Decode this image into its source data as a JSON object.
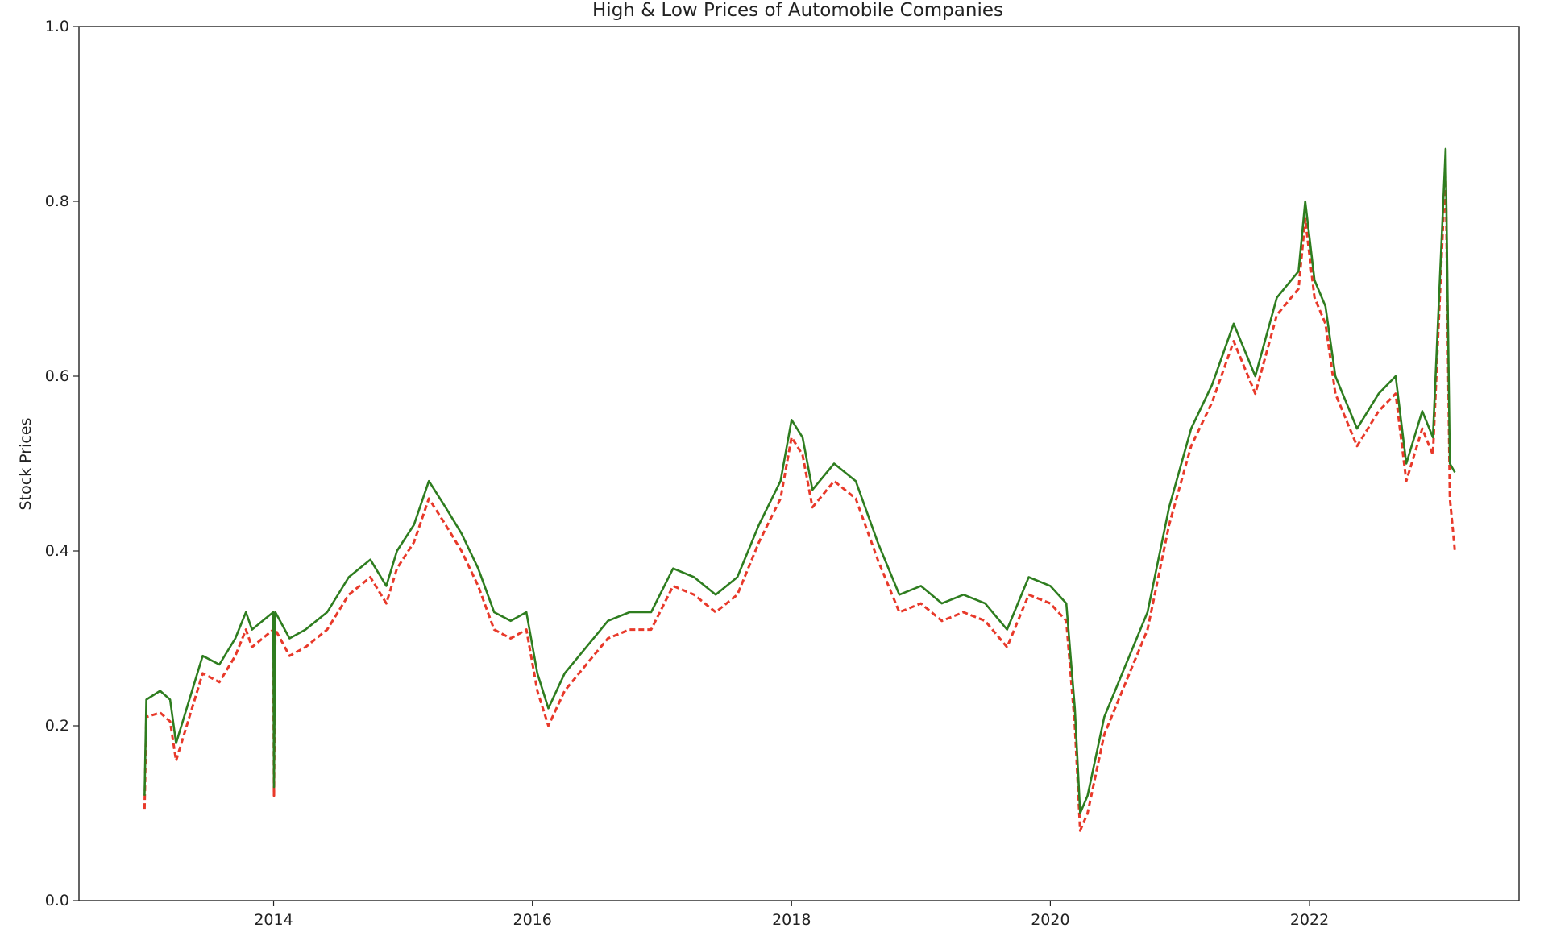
{
  "chart_data": {
    "type": "line",
    "title": "High & Low Prices of Automobile Companies",
    "xlabel": "",
    "ylabel": "Stock Prices",
    "xlim": [
      "2012-07-01",
      "2023-08-15"
    ],
    "ylim": [
      0,
      1.0
    ],
    "x_ticks": [
      "2014",
      "2016",
      "2018",
      "2020",
      "2022"
    ],
    "y_ticks": [
      "0.0",
      "0.2",
      "0.4",
      "0.6",
      "0.8",
      "1.0"
    ],
    "grid": false,
    "legend": "none",
    "series": [
      {
        "style": "solid",
        "color": "#2e7d1f",
        "points": [
          [
            "2013-01-02",
            0.12
          ],
          [
            "2013-01-07",
            0.23
          ],
          [
            "2013-02-15",
            0.24
          ],
          [
            "2013-03-15",
            0.23
          ],
          [
            "2013-04-01",
            0.18
          ],
          [
            "2013-05-01",
            0.22
          ],
          [
            "2013-06-15",
            0.28
          ],
          [
            "2013-08-01",
            0.27
          ],
          [
            "2013-09-15",
            0.3
          ],
          [
            "2013-10-15",
            0.33
          ],
          [
            "2013-11-01",
            0.31
          ],
          [
            "2013-12-01",
            0.32
          ],
          [
            "2013-12-31",
            0.33
          ],
          [
            "2014-01-02",
            0.13
          ],
          [
            "2014-01-06",
            0.33
          ],
          [
            "2014-02-15",
            0.3
          ],
          [
            "2014-04-01",
            0.31
          ],
          [
            "2014-06-01",
            0.33
          ],
          [
            "2014-08-01",
            0.37
          ],
          [
            "2014-10-01",
            0.39
          ],
          [
            "2014-11-15",
            0.36
          ],
          [
            "2014-12-15",
            0.4
          ],
          [
            "2015-02-01",
            0.43
          ],
          [
            "2015-03-15",
            0.48
          ],
          [
            "2015-05-01",
            0.45
          ],
          [
            "2015-06-15",
            0.42
          ],
          [
            "2015-08-01",
            0.38
          ],
          [
            "2015-09-15",
            0.33
          ],
          [
            "2015-11-01",
            0.32
          ],
          [
            "2015-12-15",
            0.33
          ],
          [
            "2016-01-15",
            0.26
          ],
          [
            "2016-02-15",
            0.22
          ],
          [
            "2016-04-01",
            0.26
          ],
          [
            "2016-06-01",
            0.29
          ],
          [
            "2016-08-01",
            0.32
          ],
          [
            "2016-10-01",
            0.33
          ],
          [
            "2016-12-01",
            0.33
          ],
          [
            "2017-02-01",
            0.38
          ],
          [
            "2017-04-01",
            0.37
          ],
          [
            "2017-06-01",
            0.35
          ],
          [
            "2017-08-01",
            0.37
          ],
          [
            "2017-10-01",
            0.43
          ],
          [
            "2017-12-01",
            0.48
          ],
          [
            "2018-01-01",
            0.55
          ],
          [
            "2018-02-01",
            0.53
          ],
          [
            "2018-03-01",
            0.47
          ],
          [
            "2018-05-01",
            0.5
          ],
          [
            "2018-07-01",
            0.48
          ],
          [
            "2018-09-01",
            0.41
          ],
          [
            "2018-11-01",
            0.35
          ],
          [
            "2019-01-01",
            0.36
          ],
          [
            "2019-03-01",
            0.34
          ],
          [
            "2019-05-01",
            0.35
          ],
          [
            "2019-07-01",
            0.34
          ],
          [
            "2019-09-01",
            0.31
          ],
          [
            "2019-11-01",
            0.37
          ],
          [
            "2020-01-01",
            0.36
          ],
          [
            "2020-02-15",
            0.34
          ],
          [
            "2020-03-10",
            0.22
          ],
          [
            "2020-03-25",
            0.1
          ],
          [
            "2020-04-15",
            0.12
          ],
          [
            "2020-06-01",
            0.21
          ],
          [
            "2020-08-01",
            0.27
          ],
          [
            "2020-10-01",
            0.33
          ],
          [
            "2020-12-01",
            0.45
          ],
          [
            "2021-02-01",
            0.54
          ],
          [
            "2021-04-01",
            0.59
          ],
          [
            "2021-06-01",
            0.66
          ],
          [
            "2021-08-01",
            0.6
          ],
          [
            "2021-10-01",
            0.69
          ],
          [
            "2021-12-01",
            0.72
          ],
          [
            "2021-12-20",
            0.8
          ],
          [
            "2022-01-15",
            0.71
          ],
          [
            "2022-02-15",
            0.68
          ],
          [
            "2022-03-15",
            0.6
          ],
          [
            "2022-05-15",
            0.54
          ],
          [
            "2022-07-15",
            0.58
          ],
          [
            "2022-09-01",
            0.6
          ],
          [
            "2022-10-01",
            0.5
          ],
          [
            "2022-11-15",
            0.56
          ],
          [
            "2022-12-15",
            0.53
          ],
          [
            "2023-01-20",
            0.86
          ],
          [
            "2023-02-01",
            0.5
          ],
          [
            "2023-02-15",
            0.49
          ]
        ]
      },
      {
        "style": "dashed",
        "color": "#e8392a",
        "points": [
          [
            "2013-01-02",
            0.105
          ],
          [
            "2013-01-07",
            0.21
          ],
          [
            "2013-02-15",
            0.215
          ],
          [
            "2013-03-15",
            0.205
          ],
          [
            "2013-04-01",
            0.16
          ],
          [
            "2013-05-01",
            0.2
          ],
          [
            "2013-06-15",
            0.26
          ],
          [
            "2013-08-01",
            0.25
          ],
          [
            "2013-09-15",
            0.28
          ],
          [
            "2013-10-15",
            0.31
          ],
          [
            "2013-11-01",
            0.29
          ],
          [
            "2013-12-01",
            0.3
          ],
          [
            "2013-12-31",
            0.31
          ],
          [
            "2014-01-02",
            0.12
          ],
          [
            "2014-01-06",
            0.31
          ],
          [
            "2014-02-15",
            0.28
          ],
          [
            "2014-04-01",
            0.29
          ],
          [
            "2014-06-01",
            0.31
          ],
          [
            "2014-08-01",
            0.35
          ],
          [
            "2014-10-01",
            0.37
          ],
          [
            "2014-11-15",
            0.34
          ],
          [
            "2014-12-15",
            0.38
          ],
          [
            "2015-02-01",
            0.41
          ],
          [
            "2015-03-15",
            0.46
          ],
          [
            "2015-05-01",
            0.43
          ],
          [
            "2015-06-15",
            0.4
          ],
          [
            "2015-08-01",
            0.36
          ],
          [
            "2015-09-15",
            0.31
          ],
          [
            "2015-11-01",
            0.3
          ],
          [
            "2015-12-15",
            0.31
          ],
          [
            "2016-01-15",
            0.24
          ],
          [
            "2016-02-15",
            0.2
          ],
          [
            "2016-04-01",
            0.24
          ],
          [
            "2016-06-01",
            0.27
          ],
          [
            "2016-08-01",
            0.3
          ],
          [
            "2016-10-01",
            0.31
          ],
          [
            "2016-12-01",
            0.31
          ],
          [
            "2017-02-01",
            0.36
          ],
          [
            "2017-04-01",
            0.35
          ],
          [
            "2017-06-01",
            0.33
          ],
          [
            "2017-08-01",
            0.35
          ],
          [
            "2017-10-01",
            0.41
          ],
          [
            "2017-12-01",
            0.46
          ],
          [
            "2018-01-01",
            0.53
          ],
          [
            "2018-02-01",
            0.51
          ],
          [
            "2018-03-01",
            0.45
          ],
          [
            "2018-05-01",
            0.48
          ],
          [
            "2018-07-01",
            0.46
          ],
          [
            "2018-09-01",
            0.39
          ],
          [
            "2018-11-01",
            0.33
          ],
          [
            "2019-01-01",
            0.34
          ],
          [
            "2019-03-01",
            0.32
          ],
          [
            "2019-05-01",
            0.33
          ],
          [
            "2019-07-01",
            0.32
          ],
          [
            "2019-09-01",
            0.29
          ],
          [
            "2019-11-01",
            0.35
          ],
          [
            "2020-01-01",
            0.34
          ],
          [
            "2020-02-15",
            0.32
          ],
          [
            "2020-03-10",
            0.2
          ],
          [
            "2020-03-25",
            0.08
          ],
          [
            "2020-04-15",
            0.1
          ],
          [
            "2020-06-01",
            0.19
          ],
          [
            "2020-08-01",
            0.25
          ],
          [
            "2020-10-01",
            0.31
          ],
          [
            "2020-12-01",
            0.43
          ],
          [
            "2021-02-01",
            0.52
          ],
          [
            "2021-04-01",
            0.57
          ],
          [
            "2021-06-01",
            0.64
          ],
          [
            "2021-08-01",
            0.58
          ],
          [
            "2021-10-01",
            0.67
          ],
          [
            "2021-12-01",
            0.7
          ],
          [
            "2021-12-20",
            0.78
          ],
          [
            "2022-01-15",
            0.69
          ],
          [
            "2022-02-15",
            0.66
          ],
          [
            "2022-03-15",
            0.58
          ],
          [
            "2022-05-15",
            0.52
          ],
          [
            "2022-07-15",
            0.56
          ],
          [
            "2022-09-01",
            0.58
          ],
          [
            "2022-10-01",
            0.48
          ],
          [
            "2022-11-15",
            0.54
          ],
          [
            "2022-12-15",
            0.51
          ],
          [
            "2023-01-20",
            0.84
          ],
          [
            "2023-02-01",
            0.46
          ],
          [
            "2023-02-15",
            0.4
          ]
        ]
      }
    ]
  }
}
